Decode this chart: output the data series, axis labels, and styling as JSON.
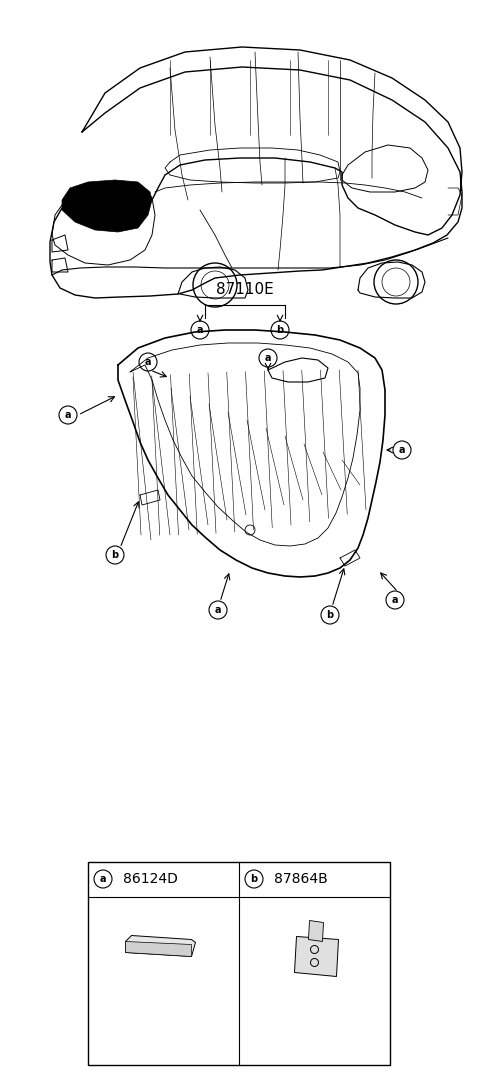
{
  "title": "87110E",
  "part_a_code": "86124D",
  "part_b_code": "87864B",
  "bg_color": "#ffffff",
  "line_color": "#000000",
  "font_size_title": 11,
  "font_size_label": 9,
  "font_size_code": 10
}
